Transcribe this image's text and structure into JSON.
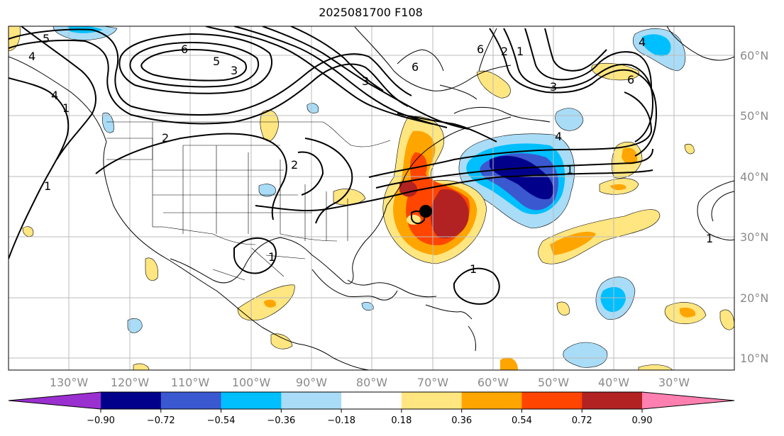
{
  "title": "2025081700 F108",
  "lon_labels": [
    "130°W",
    "120°W",
    "110°W",
    "100°W",
    "90°W",
    "80°W",
    "70°W",
    "60°W",
    "50°W",
    "40°W",
    "30°W"
  ],
  "lat_labels": [
    "60°N",
    "50°N",
    "40°N",
    "30°N",
    "20°N",
    "10°N"
  ],
  "colorbar": {
    "colors": [
      "#9a30d0",
      "#00008b",
      "#3a58d0",
      "#00bfff",
      "#a9dcf7",
      "#ffffff",
      "#ffe680",
      "#ffa500",
      "#ff4500",
      "#b22222",
      "#ff80b0"
    ],
    "labels": [
      "−0.90",
      "−0.72",
      "−0.54",
      "−0.36",
      "−0.18",
      "0.18",
      "0.36",
      "0.54",
      "0.72",
      "0.90"
    ]
  },
  "contour_labels": [
    "5",
    "6",
    "5",
    "4",
    "4",
    "3",
    "2",
    "1",
    "3",
    "6",
    "2",
    "1",
    "3",
    "6",
    "4",
    "1",
    "1",
    "1",
    "1",
    "6",
    "4",
    "2",
    "1"
  ],
  "marker": "storm-center"
}
